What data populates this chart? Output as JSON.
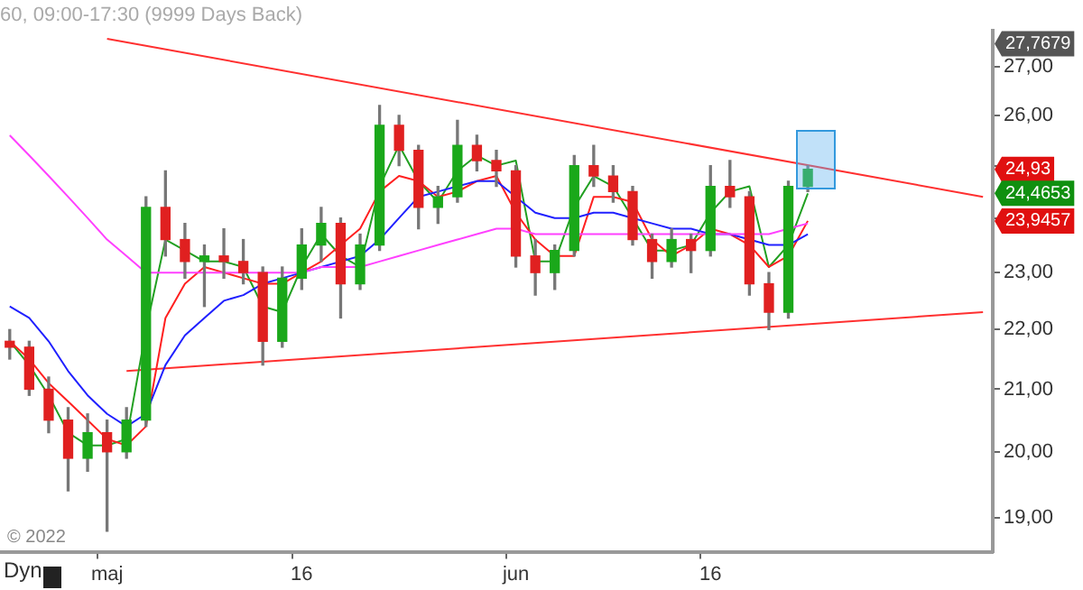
{
  "chart_data": {
    "type": "candlestick",
    "title": "60, 09:00-17:30 (9999 Days Back)",
    "categories": [
      null,
      null,
      null,
      null,
      null,
      "maj",
      null,
      null,
      null,
      null,
      null,
      null,
      null,
      null,
      null,
      "16",
      null,
      null,
      null,
      null,
      null,
      null,
      null,
      null,
      null,
      null,
      "jun",
      null,
      null,
      null,
      null,
      null,
      null,
      null,
      null,
      null,
      "16",
      null,
      null,
      null,
      null,
      null,
      null,
      null,
      null,
      null,
      null,
      null,
      null,
      null,
      null
    ],
    "ohlc": [
      [
        21.8,
        22.0,
        21.5,
        21.7
      ],
      [
        21.7,
        21.8,
        20.9,
        21.0
      ],
      [
        21.0,
        21.2,
        20.3,
        20.5
      ],
      [
        20.5,
        20.7,
        19.4,
        19.9
      ],
      [
        19.9,
        20.6,
        19.7,
        20.3
      ],
      [
        20.3,
        20.5,
        18.8,
        20.0
      ],
      [
        20.0,
        20.7,
        19.9,
        20.5
      ],
      [
        20.5,
        24.4,
        20.4,
        24.2
      ],
      [
        24.2,
        24.9,
        23.3,
        23.6
      ],
      [
        23.6,
        23.9,
        22.9,
        23.2
      ],
      [
        23.2,
        23.5,
        22.4,
        23.3
      ],
      [
        23.3,
        23.8,
        22.9,
        23.2
      ],
      [
        23.2,
        23.6,
        22.8,
        23.0
      ],
      [
        23.0,
        23.1,
        21.4,
        21.8
      ],
      [
        21.8,
        23.1,
        21.7,
        22.9
      ],
      [
        22.9,
        23.8,
        22.7,
        23.5
      ],
      [
        23.5,
        24.2,
        23.2,
        23.9
      ],
      [
        23.9,
        24.0,
        22.2,
        22.8
      ],
      [
        22.8,
        23.7,
        22.7,
        23.5
      ],
      [
        23.5,
        26.2,
        23.4,
        25.8
      ],
      [
        25.8,
        26.0,
        25.0,
        25.3
      ],
      [
        25.3,
        25.4,
        23.8,
        24.2
      ],
      [
        24.2,
        24.6,
        23.9,
        24.4
      ],
      [
        24.4,
        25.9,
        24.3,
        25.4
      ],
      [
        25.4,
        25.6,
        24.9,
        25.1
      ],
      [
        25.1,
        25.3,
        24.6,
        24.9
      ],
      [
        24.9,
        25.0,
        23.1,
        23.3
      ],
      [
        23.3,
        23.6,
        22.6,
        23.0
      ],
      [
        23.0,
        23.5,
        22.7,
        23.4
      ],
      [
        23.4,
        25.2,
        23.3,
        25.0
      ],
      [
        25.0,
        25.4,
        24.6,
        24.8
      ],
      [
        24.8,
        25.0,
        24.3,
        24.5
      ],
      [
        24.5,
        24.6,
        23.5,
        23.6
      ],
      [
        23.6,
        23.7,
        22.9,
        23.2
      ],
      [
        23.2,
        23.8,
        23.1,
        23.6
      ],
      [
        23.6,
        23.7,
        23.0,
        23.4
      ],
      [
        23.4,
        25.0,
        23.3,
        24.6
      ],
      [
        24.6,
        25.1,
        24.2,
        24.4
      ],
      [
        24.4,
        24.5,
        22.6,
        22.8
      ],
      [
        22.8,
        23.0,
        22.0,
        22.3
      ],
      [
        22.3,
        24.7,
        22.2,
        24.6
      ],
      [
        24.6,
        25.0,
        24.5,
        24.93
      ],
      null,
      null,
      null,
      null,
      null,
      null,
      null,
      null,
      null
    ],
    "series": [
      {
        "type": "line",
        "color": "#ff40ff",
        "values": [
          25.6,
          25.2,
          24.8,
          24.4,
          24.0,
          23.6,
          23.3,
          23.0,
          23.0,
          23.0,
          23.0,
          23.0,
          23.0,
          23.0,
          23.0,
          23.0,
          23.1,
          23.1,
          23.1,
          23.2,
          23.3,
          23.4,
          23.5,
          23.6,
          23.7,
          23.8,
          23.8,
          23.7,
          23.7,
          23.7,
          23.7,
          23.7,
          23.7,
          23.7,
          23.7,
          23.7,
          23.7,
          23.7,
          23.7,
          23.7,
          23.8,
          23.9,
          null,
          null,
          null,
          null,
          null,
          null,
          null,
          null,
          null
        ]
      },
      {
        "type": "line",
        "color": "#2020ff",
        "values": [
          22.4,
          22.2,
          21.8,
          21.3,
          20.9,
          20.6,
          20.4,
          20.6,
          21.4,
          21.9,
          22.2,
          22.5,
          22.6,
          22.8,
          22.9,
          23.0,
          23.1,
          23.2,
          23.3,
          23.6,
          24.0,
          24.4,
          24.5,
          24.6,
          24.7,
          24.7,
          24.4,
          24.1,
          24.0,
          24.0,
          24.1,
          24.1,
          24.0,
          23.9,
          23.8,
          23.8,
          23.7,
          23.7,
          23.6,
          23.5,
          23.5,
          23.7,
          null,
          null,
          null,
          null,
          null,
          null,
          null,
          null,
          null
        ]
      },
      {
        "type": "line",
        "color": "#ff2020",
        "values": [
          21.8,
          21.5,
          21.1,
          20.8,
          20.5,
          20.2,
          20.1,
          20.4,
          22.2,
          22.8,
          23.1,
          23.0,
          22.9,
          22.8,
          22.8,
          23.0,
          23.2,
          23.5,
          23.8,
          24.5,
          24.8,
          24.7,
          24.4,
          24.5,
          24.7,
          24.8,
          24.1,
          23.6,
          23.3,
          23.3,
          24.4,
          24.4,
          24.3,
          23.6,
          23.3,
          23.5,
          23.8,
          23.7,
          23.5,
          23.1,
          23.3,
          23.9457,
          null,
          null,
          null,
          null,
          null,
          null,
          null,
          null,
          null
        ]
      },
      {
        "type": "line",
        "color": "#22a022",
        "values": [
          21.8,
          21.4,
          20.9,
          20.3,
          20.1,
          20.1,
          20.2,
          22.0,
          23.6,
          23.4,
          23.2,
          23.2,
          23.1,
          22.4,
          22.3,
          23.1,
          23.7,
          23.3,
          23.1,
          24.6,
          25.4,
          24.7,
          24.3,
          24.9,
          25.2,
          25.0,
          25.1,
          23.2,
          23.2,
          24.2,
          24.8,
          24.6,
          24.0,
          23.4,
          23.4,
          23.5,
          24.1,
          24.5,
          24.6,
          23.1,
          23.5,
          24.4653,
          null,
          null,
          null,
          null,
          null,
          null,
          null,
          null,
          null
        ]
      },
      {
        "type": "line",
        "color": "#ff3030",
        "values": [
          null,
          null,
          null,
          null,
          null,
          27.6,
          null,
          null,
          null,
          null,
          null,
          null,
          null,
          null,
          null,
          null,
          null,
          null,
          null,
          null,
          null,
          null,
          null,
          null,
          null,
          null,
          null,
          null,
          null,
          null,
          null,
          null,
          null,
          null,
          null,
          null,
          null,
          null,
          null,
          null,
          null,
          null,
          null,
          null,
          null,
          null,
          null,
          null,
          null,
          null,
          24.4
        ]
      },
      {
        "type": "line",
        "color": "#ff3030",
        "values": [
          null,
          null,
          null,
          null,
          null,
          null,
          21.3,
          null,
          null,
          null,
          null,
          null,
          null,
          null,
          null,
          null,
          null,
          null,
          null,
          null,
          null,
          null,
          null,
          null,
          null,
          null,
          null,
          null,
          null,
          null,
          null,
          null,
          null,
          null,
          null,
          null,
          null,
          null,
          null,
          null,
          null,
          null,
          null,
          null,
          null,
          null,
          null,
          null,
          null,
          null,
          22.3
        ]
      }
    ],
    "log": "y",
    "ylim": [
      18.5,
      27.7679
    ],
    "yticks": [
      {
        "value": 19,
        "label": "19,00"
      },
      {
        "value": 20,
        "label": "20,00"
      },
      {
        "value": 21,
        "label": "21,00"
      },
      {
        "value": 22,
        "label": "22,00"
      },
      {
        "value": 23,
        "label": "23,00"
      },
      {
        "value": 24,
        "label": null
      },
      {
        "value": 25,
        "label": null
      },
      {
        "value": 26,
        "label": "26,00"
      },
      {
        "value": 27,
        "label": "27,00"
      }
    ],
    "marker": "none",
    "grid": false,
    "legend": false,
    "annotations": [
      "© 2022",
      "Dyn",
      "27,7679",
      "24,93",
      "24,4653",
      "23,9457"
    ]
  }
}
